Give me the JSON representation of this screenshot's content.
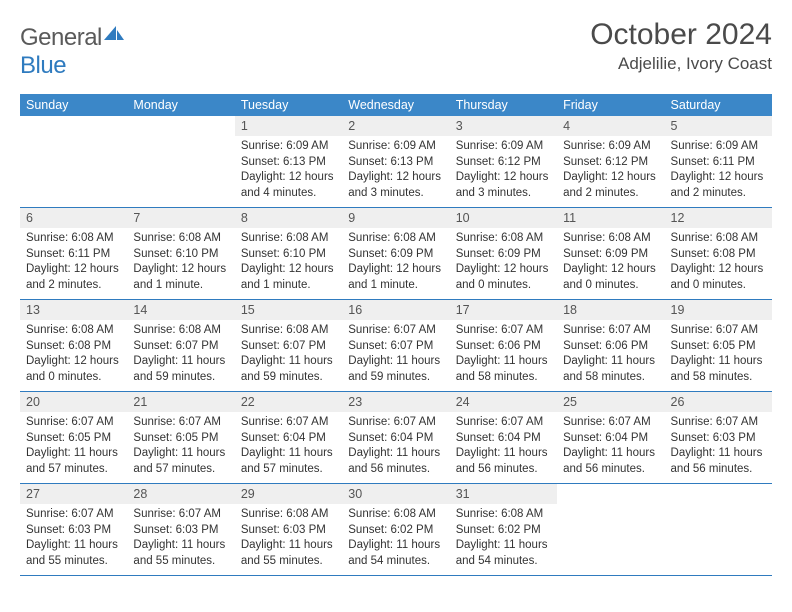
{
  "logo": {
    "word1": "General",
    "word2": "Blue"
  },
  "title": "October 2024",
  "location": "Adjelilie, Ivory Coast",
  "day_names": [
    "Sunday",
    "Monday",
    "Tuesday",
    "Wednesday",
    "Thursday",
    "Friday",
    "Saturday"
  ],
  "colors": {
    "header_bg": "#3b87c8",
    "accent": "#2f7bbf",
    "daynum_bg": "#efefef",
    "text": "#333333",
    "title_text": "#4a4a4a"
  },
  "weeks": [
    [
      null,
      null,
      {
        "n": 1,
        "sr": "6:09 AM",
        "ss": "6:13 PM",
        "dl": "12 hours and 4 minutes."
      },
      {
        "n": 2,
        "sr": "6:09 AM",
        "ss": "6:13 PM",
        "dl": "12 hours and 3 minutes."
      },
      {
        "n": 3,
        "sr": "6:09 AM",
        "ss": "6:12 PM",
        "dl": "12 hours and 3 minutes."
      },
      {
        "n": 4,
        "sr": "6:09 AM",
        "ss": "6:12 PM",
        "dl": "12 hours and 2 minutes."
      },
      {
        "n": 5,
        "sr": "6:09 AM",
        "ss": "6:11 PM",
        "dl": "12 hours and 2 minutes."
      }
    ],
    [
      {
        "n": 6,
        "sr": "6:08 AM",
        "ss": "6:11 PM",
        "dl": "12 hours and 2 minutes."
      },
      {
        "n": 7,
        "sr": "6:08 AM",
        "ss": "6:10 PM",
        "dl": "12 hours and 1 minute."
      },
      {
        "n": 8,
        "sr": "6:08 AM",
        "ss": "6:10 PM",
        "dl": "12 hours and 1 minute."
      },
      {
        "n": 9,
        "sr": "6:08 AM",
        "ss": "6:09 PM",
        "dl": "12 hours and 1 minute."
      },
      {
        "n": 10,
        "sr": "6:08 AM",
        "ss": "6:09 PM",
        "dl": "12 hours and 0 minutes."
      },
      {
        "n": 11,
        "sr": "6:08 AM",
        "ss": "6:09 PM",
        "dl": "12 hours and 0 minutes."
      },
      {
        "n": 12,
        "sr": "6:08 AM",
        "ss": "6:08 PM",
        "dl": "12 hours and 0 minutes."
      }
    ],
    [
      {
        "n": 13,
        "sr": "6:08 AM",
        "ss": "6:08 PM",
        "dl": "12 hours and 0 minutes."
      },
      {
        "n": 14,
        "sr": "6:08 AM",
        "ss": "6:07 PM",
        "dl": "11 hours and 59 minutes."
      },
      {
        "n": 15,
        "sr": "6:08 AM",
        "ss": "6:07 PM",
        "dl": "11 hours and 59 minutes."
      },
      {
        "n": 16,
        "sr": "6:07 AM",
        "ss": "6:07 PM",
        "dl": "11 hours and 59 minutes."
      },
      {
        "n": 17,
        "sr": "6:07 AM",
        "ss": "6:06 PM",
        "dl": "11 hours and 58 minutes."
      },
      {
        "n": 18,
        "sr": "6:07 AM",
        "ss": "6:06 PM",
        "dl": "11 hours and 58 minutes."
      },
      {
        "n": 19,
        "sr": "6:07 AM",
        "ss": "6:05 PM",
        "dl": "11 hours and 58 minutes."
      }
    ],
    [
      {
        "n": 20,
        "sr": "6:07 AM",
        "ss": "6:05 PM",
        "dl": "11 hours and 57 minutes."
      },
      {
        "n": 21,
        "sr": "6:07 AM",
        "ss": "6:05 PM",
        "dl": "11 hours and 57 minutes."
      },
      {
        "n": 22,
        "sr": "6:07 AM",
        "ss": "6:04 PM",
        "dl": "11 hours and 57 minutes."
      },
      {
        "n": 23,
        "sr": "6:07 AM",
        "ss": "6:04 PM",
        "dl": "11 hours and 56 minutes."
      },
      {
        "n": 24,
        "sr": "6:07 AM",
        "ss": "6:04 PM",
        "dl": "11 hours and 56 minutes."
      },
      {
        "n": 25,
        "sr": "6:07 AM",
        "ss": "6:04 PM",
        "dl": "11 hours and 56 minutes."
      },
      {
        "n": 26,
        "sr": "6:07 AM",
        "ss": "6:03 PM",
        "dl": "11 hours and 56 minutes."
      }
    ],
    [
      {
        "n": 27,
        "sr": "6:07 AM",
        "ss": "6:03 PM",
        "dl": "11 hours and 55 minutes."
      },
      {
        "n": 28,
        "sr": "6:07 AM",
        "ss": "6:03 PM",
        "dl": "11 hours and 55 minutes."
      },
      {
        "n": 29,
        "sr": "6:08 AM",
        "ss": "6:03 PM",
        "dl": "11 hours and 55 minutes."
      },
      {
        "n": 30,
        "sr": "6:08 AM",
        "ss": "6:02 PM",
        "dl": "11 hours and 54 minutes."
      },
      {
        "n": 31,
        "sr": "6:08 AM",
        "ss": "6:02 PM",
        "dl": "11 hours and 54 minutes."
      },
      null,
      null
    ]
  ],
  "labels": {
    "sunrise": "Sunrise:",
    "sunset": "Sunset:",
    "daylight": "Daylight:"
  }
}
